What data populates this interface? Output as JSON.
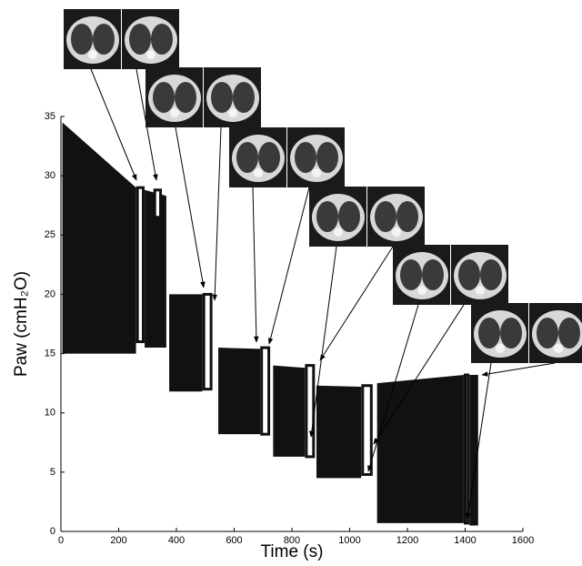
{
  "chart_data": {
    "type": "envelope",
    "x_label": "Time (s)",
    "y_label": "Paw (cmH₂O)",
    "xlim": [
      0,
      1600
    ],
    "xticks": [
      0,
      200,
      400,
      600,
      800,
      1000,
      1200,
      1400,
      1600
    ],
    "ylim": [
      0,
      35
    ],
    "yticks": [
      0,
      5,
      10,
      15,
      20,
      25,
      30,
      35
    ],
    "color": "#111111",
    "segments": [
      {
        "start": 5,
        "end": 260,
        "top_start": 34.5,
        "top_end": 29,
        "bottom": 15
      },
      {
        "start": 290,
        "end": 365,
        "top_start": 28.8,
        "top_end": 28.3,
        "bottom": 15.5
      },
      {
        "start": 375,
        "end": 490,
        "top_start": 20,
        "top_end": 20,
        "bottom": 11.8
      },
      {
        "start": 545,
        "end": 690,
        "top_start": 15.5,
        "top_end": 15.4,
        "bottom": 8.2
      },
      {
        "start": 735,
        "end": 845,
        "top_start": 14,
        "top_end": 13.8,
        "bottom": 6.3
      },
      {
        "start": 885,
        "end": 1040,
        "top_start": 12.3,
        "top_end": 12.2,
        "bottom": 4.5
      },
      {
        "start": 1095,
        "end": 1395,
        "top_start": 12.5,
        "top_end": 13.2,
        "bottom": 0.7
      },
      {
        "start": 1415,
        "end": 1445,
        "top_start": 13.2,
        "top_end": 13.2,
        "bottom": 0.5
      }
    ],
    "holds": [
      {
        "start": 265,
        "end": 285,
        "top": 29,
        "bottom": 16
      },
      {
        "start": 325,
        "end": 345,
        "top": 28.8,
        "bottom": 26.5
      },
      {
        "start": 495,
        "end": 520,
        "top": 20,
        "bottom": 12
      },
      {
        "start": 695,
        "end": 720,
        "top": 15.5,
        "bottom": 8.2
      },
      {
        "start": 850,
        "end": 875,
        "top": 14,
        "bottom": 6.3
      },
      {
        "start": 1045,
        "end": 1075,
        "top": 12.3,
        "bottom": 4.8
      },
      {
        "start": 1400,
        "end": 1410,
        "top": 13.2,
        "bottom": 0.7
      }
    ]
  }
}
